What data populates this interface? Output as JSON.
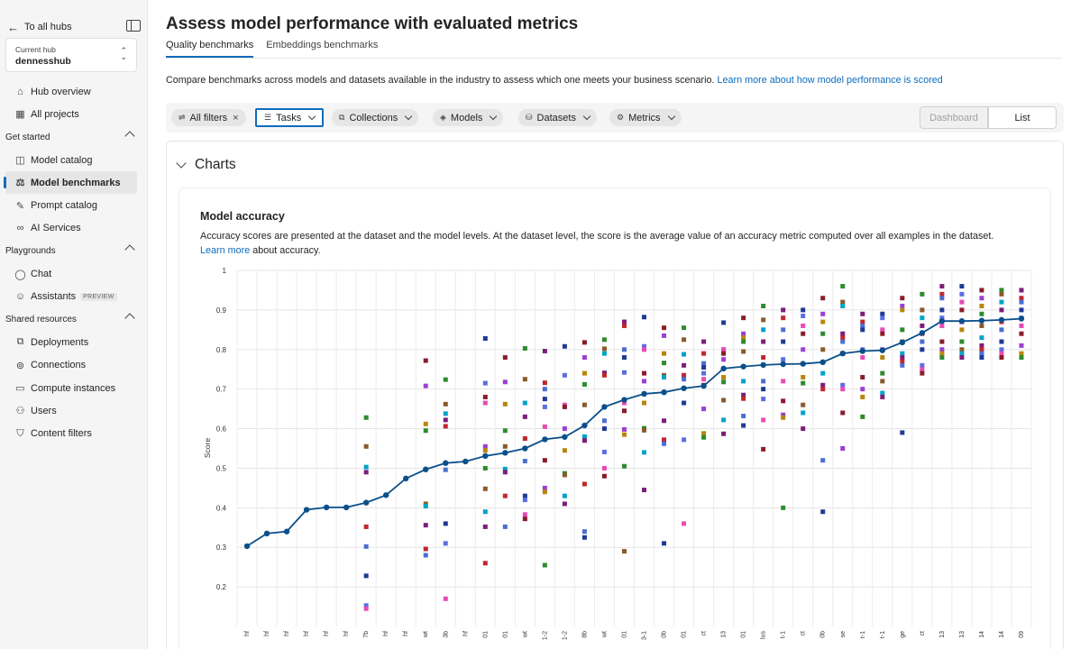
{
  "sidebar": {
    "back_label": "To all hubs",
    "hub_label": "Current hub",
    "hub_name": "dennesshub",
    "top_items": [
      {
        "label": "Hub overview",
        "icon": "home-icon"
      },
      {
        "label": "All projects",
        "icon": "grid-icon"
      }
    ],
    "sections": [
      {
        "title": "Get started",
        "items": [
          {
            "label": "Model catalog",
            "icon": "cube-icon"
          },
          {
            "label": "Model benchmarks",
            "icon": "scale-icon",
            "active": true
          },
          {
            "label": "Prompt catalog",
            "icon": "prompt-icon"
          },
          {
            "label": "AI Services",
            "icon": "link-icon"
          }
        ]
      },
      {
        "title": "Playgrounds",
        "items": [
          {
            "label": "Chat",
            "icon": "chat-icon"
          },
          {
            "label": "Assistants",
            "icon": "assistant-icon",
            "badge": "PREVIEW"
          }
        ]
      },
      {
        "title": "Shared resources",
        "items": [
          {
            "label": "Deployments",
            "icon": "deploy-icon"
          },
          {
            "label": "Connections",
            "icon": "connection-icon"
          },
          {
            "label": "Compute instances",
            "icon": "computer-icon"
          },
          {
            "label": "Users",
            "icon": "users-icon"
          },
          {
            "label": "Content filters",
            "icon": "shield-icon"
          }
        ]
      }
    ]
  },
  "main": {
    "title": "Assess model performance with evaluated metrics",
    "tabs": [
      {
        "label": "Quality benchmarks",
        "active": true
      },
      {
        "label": "Embeddings benchmarks",
        "active": false
      }
    ],
    "description": "Compare benchmarks across models and datasets available in the industry to assess which one meets your business scenario.",
    "description_link": "Learn more about how model performance is scored",
    "filters": {
      "all_filters": "All filters",
      "tasks": "Tasks",
      "collections": "Collections",
      "models": "Models",
      "datasets": "Datasets",
      "metrics": "Metrics"
    },
    "view": {
      "dashboard": "Dashboard",
      "list": "List",
      "selected": "List"
    },
    "charts_header": "Charts",
    "chart_title": "Model accuracy",
    "chart_description": "Accuracy scores are presented at the dataset and the model levels. At the dataset level, the score is the average value of an accuracy metric computed over all examples in the dataset.",
    "chart_link": "Learn more",
    "chart_link_suffix": "about accuracy."
  },
  "chart_data": {
    "type": "line",
    "ylabel": "Score",
    "ylim": [
      0.1,
      1.0
    ],
    "yticks": [
      0.2,
      0.3,
      0.4,
      0.5,
      0.6,
      0.7,
      0.8,
      0.9,
      1
    ],
    "categories": [
      "hf",
      "hf",
      "hf",
      "hf",
      "hf",
      "hf",
      "7b",
      "hf",
      "hf",
      "wt",
      "3b",
      "hf",
      "01",
      "01",
      "wt",
      "1-2",
      "1-2",
      "8b",
      "wt",
      "01",
      "3-1",
      "0b",
      "01",
      "ct",
      "13",
      "01",
      "lus",
      "t-1",
      "ct",
      "0b",
      "se",
      "t-1",
      "t-1",
      "ge",
      "ct",
      "13",
      "13",
      "14",
      "14",
      "09"
    ],
    "series": [
      {
        "values": [
          0.303,
          0.335,
          0.34,
          0.395,
          0.401,
          0.401,
          0.413,
          0.432,
          0.474,
          0.497,
          0.513,
          0.517,
          0.531,
          0.539,
          0.55,
          0.573,
          0.579,
          0.608,
          0.655,
          0.673,
          0.688,
          0.692,
          0.702,
          0.708,
          0.752,
          0.757,
          0.761,
          0.763,
          0.764,
          0.768,
          0.79,
          0.796,
          0.798,
          0.818,
          0.842,
          0.872,
          0.872,
          0.873,
          0.875,
          0.878
        ]
      }
    ],
    "scatter_colors": [
      "#1f3a93",
      "#5b6ee1",
      "#e84bb4",
      "#8a1c2b",
      "#9b3fd1",
      "#b8860b",
      "#2e8b2e",
      "#8b5a2b",
      "#00a3c8",
      "#7b1e7a",
      "#c1272d",
      "#4a6fd1"
    ],
    "scatter_points": [
      [],
      [],
      [],
      [],
      [],
      [],
      [
        0.628,
        0.555,
        0.503,
        0.49,
        0.352,
        0.302,
        0.228,
        0.153,
        0.145
      ],
      [],
      [],
      [
        0.772,
        0.708,
        0.612,
        0.595,
        0.41,
        0.404,
        0.356,
        0.296,
        0.28
      ],
      [
        0.724,
        0.662,
        0.638,
        0.622,
        0.606,
        0.496,
        0.36,
        0.31,
        0.17
      ],
      [],
      [
        0.828,
        0.715,
        0.665,
        0.68,
        0.555,
        0.545,
        0.5,
        0.448,
        0.39,
        0.352,
        0.26
      ],
      [
        0.78,
        0.718,
        0.662,
        0.595,
        0.555,
        0.498,
        0.49,
        0.43,
        0.352
      ],
      [
        0.803,
        0.725,
        0.665,
        0.63,
        0.575,
        0.518,
        0.43,
        0.42,
        0.383,
        0.372
      ],
      [
        0.796,
        0.716,
        0.7,
        0.675,
        0.655,
        0.605,
        0.52,
        0.45,
        0.44,
        0.255
      ],
      [
        0.808,
        0.735,
        0.66,
        0.655,
        0.6,
        0.545,
        0.487,
        0.483,
        0.43,
        0.41
      ],
      [
        0.818,
        0.78,
        0.74,
        0.712,
        0.66,
        0.58,
        0.57,
        0.46,
        0.34,
        0.325
      ],
      [
        0.825,
        0.802,
        0.79,
        0.741,
        0.735,
        0.62,
        0.6,
        0.541,
        0.5,
        0.48
      ],
      [
        0.87,
        0.86,
        0.8,
        0.78,
        0.742,
        0.665,
        0.645,
        0.598,
        0.585,
        0.505,
        0.29
      ],
      [
        0.882,
        0.808,
        0.8,
        0.74,
        0.72,
        0.665,
        0.601,
        0.596,
        0.54,
        0.445
      ],
      [
        0.855,
        0.835,
        0.79,
        0.766,
        0.735,
        0.73,
        0.62,
        0.572,
        0.562,
        0.31
      ],
      [
        0.855,
        0.825,
        0.788,
        0.76,
        0.735,
        0.725,
        0.665,
        0.572,
        0.36
      ],
      [
        0.82,
        0.79,
        0.765,
        0.755,
        0.74,
        0.725,
        0.71,
        0.65,
        0.588,
        0.578
      ],
      [
        0.868,
        0.8,
        0.8,
        0.79,
        0.775,
        0.73,
        0.718,
        0.672,
        0.622,
        0.587
      ],
      [
        0.88,
        0.84,
        0.83,
        0.82,
        0.795,
        0.72,
        0.685,
        0.676,
        0.632,
        0.608
      ],
      [
        0.91,
        0.875,
        0.85,
        0.82,
        0.78,
        0.72,
        0.7,
        0.675,
        0.622,
        0.548
      ],
      [
        0.9,
        0.88,
        0.85,
        0.82,
        0.775,
        0.72,
        0.67,
        0.635,
        0.628,
        0.4
      ],
      [
        0.9,
        0.885,
        0.86,
        0.84,
        0.8,
        0.73,
        0.715,
        0.66,
        0.64,
        0.6
      ],
      [
        0.93,
        0.89,
        0.87,
        0.84,
        0.8,
        0.74,
        0.71,
        0.7,
        0.52,
        0.39
      ],
      [
        0.96,
        0.92,
        0.91,
        0.84,
        0.83,
        0.82,
        0.79,
        0.71,
        0.7,
        0.64,
        0.55
      ],
      [
        0.89,
        0.87,
        0.86,
        0.85,
        0.8,
        0.78,
        0.73,
        0.7,
        0.68,
        0.63
      ],
      [
        0.89,
        0.88,
        0.85,
        0.84,
        0.8,
        0.78,
        0.74,
        0.72,
        0.69,
        0.68
      ],
      [
        0.93,
        0.91,
        0.9,
        0.85,
        0.82,
        0.79,
        0.78,
        0.77,
        0.76,
        0.59
      ],
      [
        0.94,
        0.9,
        0.88,
        0.86,
        0.84,
        0.82,
        0.8,
        0.76,
        0.75,
        0.74
      ],
      [
        0.96,
        0.94,
        0.93,
        0.9,
        0.88,
        0.86,
        0.82,
        0.8,
        0.79,
        0.78
      ],
      [
        0.96,
        0.94,
        0.92,
        0.9,
        0.87,
        0.85,
        0.82,
        0.8,
        0.79,
        0.78
      ],
      [
        0.95,
        0.93,
        0.91,
        0.89,
        0.86,
        0.83,
        0.81,
        0.8,
        0.79,
        0.78
      ],
      [
        0.95,
        0.94,
        0.92,
        0.9,
        0.87,
        0.85,
        0.82,
        0.8,
        0.79,
        0.78
      ],
      [
        0.95,
        0.93,
        0.92,
        0.9,
        0.88,
        0.86,
        0.84,
        0.81,
        0.79,
        0.78
      ]
    ]
  }
}
